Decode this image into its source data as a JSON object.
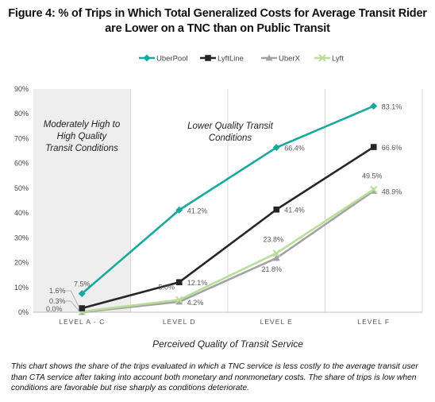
{
  "figure": {
    "label": "Figure 4:",
    "title_line1": "% of Trips in Which Total Generalized Costs for Average Transit Rider",
    "title_line2": "are Lower on a TNC than on Public Transit"
  },
  "chart_data": {
    "type": "line",
    "categories": [
      "LEVEL A - C",
      "LEVEL D",
      "LEVEL E",
      "LEVEL F"
    ],
    "xlabel": "Perceived Quality of Transit Service",
    "ylabel": "",
    "ylim": [
      0,
      90
    ],
    "yticks": [
      "0%",
      "10%",
      "20%",
      "30%",
      "40%",
      "50%",
      "60%",
      "70%",
      "80%",
      "90%"
    ],
    "grid": "vertical",
    "legend_position": "top",
    "series": [
      {
        "name": "UberPool",
        "values": [
          7.5,
          41.2,
          66.4,
          83.1
        ],
        "labels": [
          "7.5%",
          "41.2%",
          "66.4%",
          "83.1%"
        ],
        "color": "#17A99C",
        "marker": "diamond"
      },
      {
        "name": "LyftLine",
        "values": [
          1.6,
          12.1,
          41.4,
          66.6
        ],
        "labels": [
          "1.6%",
          "12.1%",
          "41.4%",
          "66.6%"
        ],
        "color": "#262626",
        "marker": "square"
      },
      {
        "name": "UberX",
        "values": [
          0.0,
          4.2,
          21.8,
          48.9
        ],
        "labels": [
          "0.0%",
          "4.2%",
          "21.8%",
          "48.9%"
        ],
        "color": "#A3A3A3",
        "marker": "triangle"
      },
      {
        "name": "Lyft",
        "values": [
          0.3,
          5.0,
          23.8,
          49.5
        ],
        "labels": [
          "0.3%",
          "5.0%",
          "23.8%",
          "49.5%"
        ],
        "color": "#B9DE9C",
        "marker": "x"
      }
    ],
    "annotations": [
      {
        "lines": [
          "Moderately High to",
          "High Quality",
          "Transit Conditions"
        ]
      },
      {
        "lines": [
          "Lower Quality Transit",
          "Conditions"
        ]
      }
    ]
  },
  "caption": "This chart shows the share of the trips evaluated in which a TNC service is less costly to the average transit user than CTA service after taking into account both monetary and nonmonetary costs.  The share of trips is low when conditions are favorable but rise sharply as conditions deteriorate."
}
